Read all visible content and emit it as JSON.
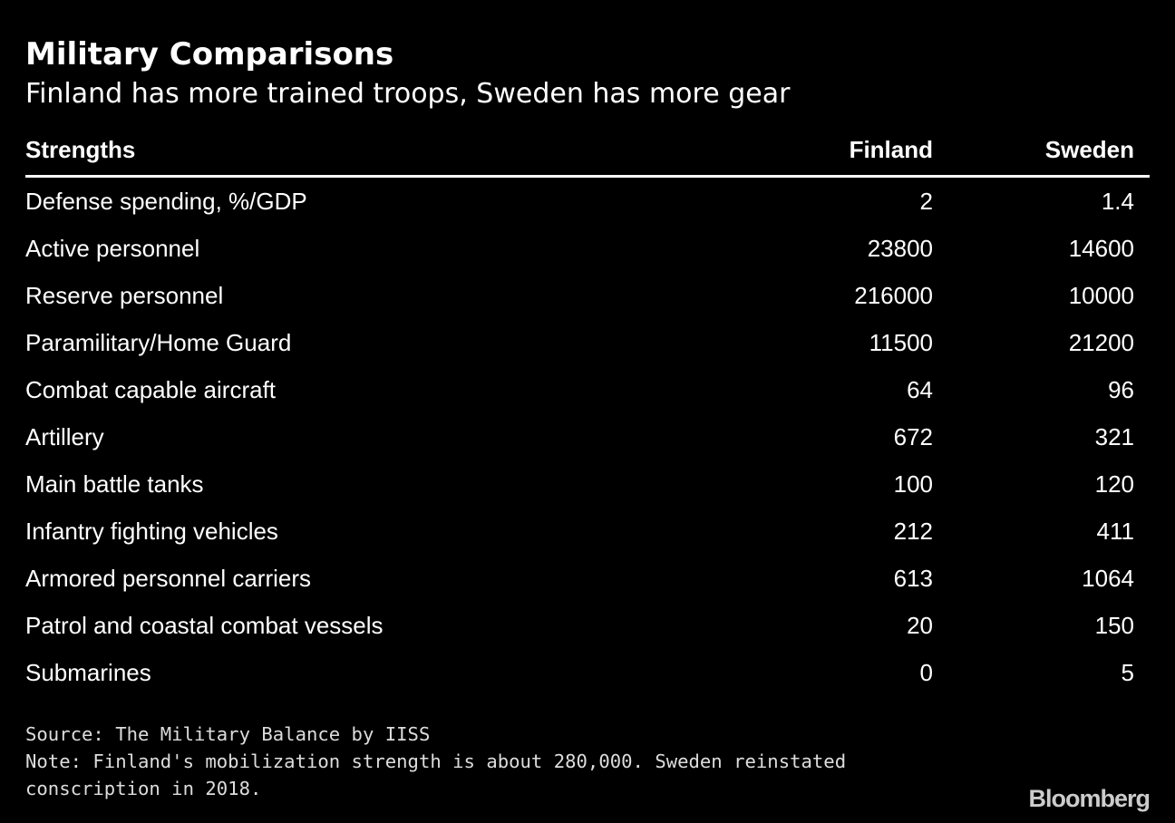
{
  "header": {
    "title": "Military Comparisons",
    "subtitle": "Finland has more trained troops, Sweden has more gear"
  },
  "table": {
    "columns": [
      "Strengths",
      "Finland",
      "Sweden"
    ],
    "rows": [
      [
        "Defense spending, %/GDP",
        2,
        1.4
      ],
      [
        "Active personnel",
        23800,
        14600
      ],
      [
        "Reserve personnel",
        216000,
        10000
      ],
      [
        "Paramilitary/Home Guard",
        11500,
        21200
      ],
      [
        "Combat capable aircraft",
        64,
        96
      ],
      [
        "Artillery",
        672,
        321
      ],
      [
        "Main battle tanks",
        100,
        120
      ],
      [
        "Infantry fighting vehicles",
        212,
        411
      ],
      [
        "Armored personnel carriers",
        613,
        1064
      ],
      [
        "Patrol and coastal combat vessels",
        20,
        150
      ],
      [
        "Submarines",
        0,
        5
      ]
    ]
  },
  "footer": {
    "source": "Source: The Military Balance by IISS",
    "note": "Note: Finland's mobilization strength is about 280,000. Sweden reinstated conscription in 2018.",
    "logo": "Bloomberg"
  }
}
